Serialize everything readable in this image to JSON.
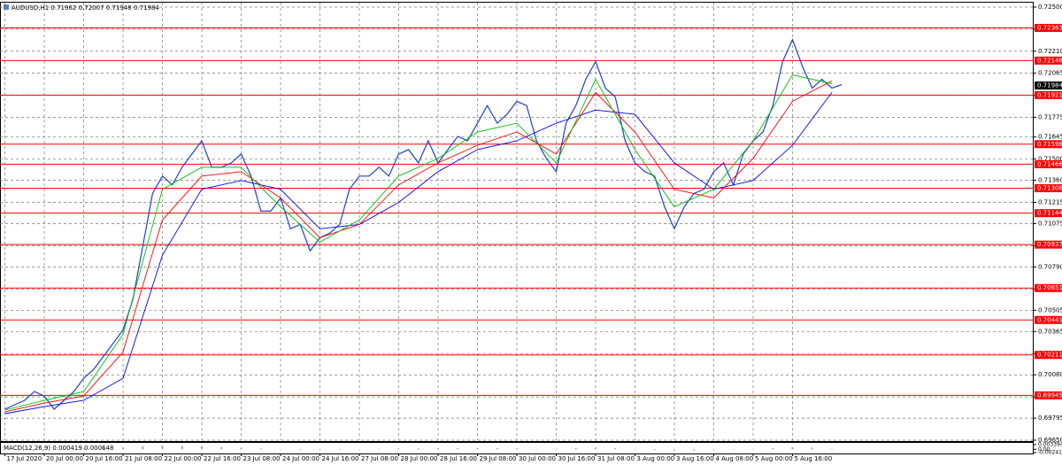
{
  "chart_data": [
    {
      "type": "line",
      "title": "AUDUSD,H1  0.71962 0.72007 0.71948 0.71984",
      "xlim": [
        -2,
        418
      ],
      "xticks": [
        {
          "value": 0,
          "label": "17 Jul 2020"
        },
        {
          "value": 16,
          "label": "20 Jul 00:00"
        },
        {
          "value": 32,
          "label": "20 Jul 16:00"
        },
        {
          "value": 48,
          "label": "21 Jul 08:00"
        },
        {
          "value": 64,
          "label": "22 Jul 00:00"
        },
        {
          "value": 80,
          "label": "22 Jul 16:00"
        },
        {
          "value": 96,
          "label": "23 Jul 08:00"
        },
        {
          "value": 112,
          "label": "24 Jul 00:00"
        },
        {
          "value": 128,
          "label": "24 Jul 16:00"
        },
        {
          "value": 144,
          "label": "27 Jul 08:00"
        },
        {
          "value": 160,
          "label": "28 Jul 00:00"
        },
        {
          "value": 176,
          "label": "28 Jul 16:00"
        },
        {
          "value": 192,
          "label": "29 Jul 08:00"
        },
        {
          "value": 208,
          "label": "30 Jul 00:00"
        },
        {
          "value": 224,
          "label": "30 Jul 16:00"
        },
        {
          "value": 240,
          "label": "31 Jul 08:00"
        },
        {
          "value": 256,
          "label": "3 Aug 00:00"
        },
        {
          "value": 272,
          "label": "3 Aug 16:00"
        },
        {
          "value": 288,
          "label": "4 Aug 08:00"
        },
        {
          "value": 304,
          "label": "5 Aug 00:00"
        },
        {
          "value": 320,
          "label": "5 Aug 16:00"
        }
      ],
      "ylim": [
        0.6965,
        0.725
      ],
      "yticks": [
        {
          "value": 0.725,
          "label": "0.72500"
        },
        0.72355,
        {
          "value": 0.7221,
          "label": "0.72210"
        },
        0.72065,
        {
          "value": 0.7192,
          "label": "0.71920"
        },
        0.71775,
        0.71645,
        {
          "value": 0.715,
          "label": "0.71500"
        },
        {
          "value": 0.7136,
          "label": "0.71360"
        },
        0.71215,
        0.71075,
        {
          "value": 0.7093,
          "label": "0.70930"
        },
        {
          "value": 0.7079,
          "label": "0.70790"
        },
        0.70645,
        0.70505,
        0.70365,
        {
          "value": 0.7022,
          "label": "0.70220"
        },
        {
          "value": 0.7008,
          "label": "0.70080"
        },
        0.69935,
        0.69795,
        {
          "value": 0.6965,
          "label": "0.69650"
        }
      ],
      "grid": true,
      "levels": [
        0.72363,
        0.72148,
        0.71921,
        0.71598,
        0.71466,
        0.71308,
        0.71144,
        0.70937,
        0.70651,
        0.70441,
        0.70211,
        0.69945
      ],
      "level_color": "#ff0000",
      "last_price": 0.71984,
      "series": [
        {
          "color": "#1f3fd6",
          "x": [
            0,
            4,
            8,
            12,
            16,
            20,
            24,
            28,
            32,
            36,
            40,
            44,
            48,
            52,
            56,
            60,
            64,
            68,
            72,
            76,
            80,
            84,
            88,
            92,
            96,
            100,
            104,
            108,
            112,
            116,
            120,
            124,
            128,
            132,
            136,
            140,
            144,
            148,
            152,
            156,
            160,
            164,
            168,
            172,
            176,
            180,
            184,
            188,
            192,
            196,
            200,
            204,
            208,
            212,
            216,
            220,
            224,
            228,
            232,
            236,
            240,
            244,
            248,
            252,
            256,
            260,
            264,
            268,
            272,
            276,
            280,
            284,
            288,
            292,
            296,
            300,
            304,
            308,
            312,
            316,
            320,
            324,
            328,
            332,
            336,
            340
          ],
          "values": [
            0.69854,
            0.69883,
            0.69912,
            0.6997,
            0.69941,
            0.69854,
            0.69912,
            0.6997,
            0.70057,
            0.70115,
            0.70201,
            0.70288,
            0.70375,
            0.70578,
            0.70925,
            0.71273,
            0.71388,
            0.7133,
            0.71446,
            0.71533,
            0.7162,
            0.71446,
            0.71446,
            0.71475,
            0.71533,
            0.71388,
            0.71157,
            0.71157,
            0.71244,
            0.71041,
            0.7107,
            0.70896,
            0.70983,
            0.71012,
            0.7107,
            0.71301,
            0.71388,
            0.71388,
            0.71446,
            0.71388,
            0.71533,
            0.71562,
            0.71475,
            0.7162,
            0.71475,
            0.71562,
            0.71649,
            0.7162,
            0.71736,
            0.71852,
            0.71736,
            0.71794,
            0.7188,
            0.71852,
            0.7162,
            0.71504,
            0.71417,
            0.71736,
            0.71852,
            0.72025,
            0.72141,
            0.71967,
            0.71909,
            0.7162,
            0.71475,
            0.71417,
            0.71388,
            0.71186,
            0.71041,
            0.71186,
            0.71273,
            0.71301,
            0.71417,
            0.71475,
            0.7133,
            0.71533,
            0.7162,
            0.71678,
            0.71852,
            0.72141,
            0.72286,
            0.72112,
            0.71967,
            0.72025,
            0.71967,
            0.7199
          ]
        },
        {
          "color": "#0000ff",
          "x": [
            0,
            16,
            32,
            48,
            64,
            80,
            96,
            112,
            128,
            144,
            160,
            176,
            192,
            208,
            224,
            240,
            256,
            272,
            288,
            304,
            320,
            336
          ],
          "values": [
            0.69825,
            0.69871,
            0.69912,
            0.70057,
            0.70867,
            0.71301,
            0.71359,
            0.71301,
            0.71041,
            0.7107,
            0.71215,
            0.71417,
            0.71562,
            0.7162,
            0.71736,
            0.71823,
            0.71794,
            0.71475,
            0.71301,
            0.71359,
            0.71591,
            0.71938
          ]
        },
        {
          "color": "#ff0000",
          "x": [
            0,
            16,
            32,
            48,
            64,
            80,
            96,
            112,
            128,
            144,
            160,
            176,
            192,
            208,
            224,
            240,
            256,
            272,
            288,
            304,
            320,
            336
          ],
          "values": [
            0.69837,
            0.69894,
            0.69941,
            0.7023,
            0.71099,
            0.71388,
            0.71417,
            0.71244,
            0.70983,
            0.7107,
            0.7133,
            0.71475,
            0.71591,
            0.71678,
            0.71533,
            0.71938,
            0.71678,
            0.71301,
            0.71244,
            0.71504,
            0.7188,
            0.72014
          ]
        },
        {
          "color": "#00c000",
          "x": [
            0,
            16,
            32,
            48,
            64,
            80,
            96,
            112,
            128,
            144,
            160,
            176,
            192,
            208,
            224,
            240,
            256,
            272,
            288,
            304,
            320,
            336
          ],
          "values": [
            0.69848,
            0.69912,
            0.6997,
            0.70346,
            0.71301,
            0.71446,
            0.71446,
            0.71186,
            0.70954,
            0.71099,
            0.71388,
            0.71504,
            0.71678,
            0.71736,
            0.71475,
            0.72025,
            0.71562,
            0.71186,
            0.71301,
            0.7162,
            0.72054,
            0.71996
          ]
        }
      ]
    },
    {
      "type": "bar",
      "title": "MACD(12,26,9) 0.000419 0.000648",
      "xlim": [
        -2,
        418
      ],
      "x": [
        0,
        8,
        16,
        24,
        32,
        40,
        48,
        56,
        64,
        72,
        80,
        88,
        96,
        104,
        112,
        120,
        128,
        136,
        144,
        152,
        160,
        168,
        176,
        184,
        192,
        200,
        208,
        216,
        224,
        232,
        240,
        248,
        256,
        264,
        272,
        280,
        288,
        296,
        304,
        312,
        320,
        328,
        336
      ],
      "values": [
        0.0001,
        0.0002,
        0.0003,
        0.0004,
        0.0006,
        0.0009,
        0.0013,
        0.0021,
        0.0028,
        0.0025,
        0.0022,
        0.0016,
        0.0012,
        0.0006,
        0.0001,
        -0.0004,
        -0.0006,
        -0.0004,
        0.0001,
        0.0004,
        0.0006,
        0.0007,
        0.0008,
        0.0008,
        0.0009,
        0.0008,
        0.0007,
        0.0002,
        0.0003,
        0.0009,
        0.0012,
        0.0008,
        -0.0001,
        -0.0006,
        -0.0009,
        -0.0009,
        -0.0006,
        -0.0002,
        0.0003,
        0.0009,
        0.0015,
        0.0012,
        0.0004
      ],
      "color": "#a8a8a8",
      "ylim": [
        -0.00241,
        0.003394
      ],
      "yticks": [
        0.003394,
        {
          "value": 0,
          "label": "0.00"
        },
        -0.00241
      ]
    }
  ]
}
